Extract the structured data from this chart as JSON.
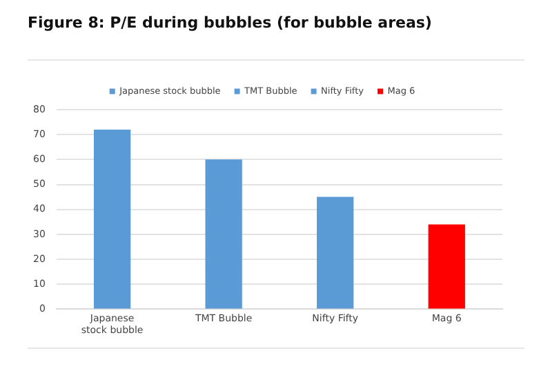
{
  "chart_data": {
    "type": "bar",
    "title": "Figure 8: P/E during bubbles (for bubble areas)",
    "categories": [
      "Japanese stock bubble",
      "TMT Bubble",
      "Nifty Fifty",
      "Mag 6"
    ],
    "series": [
      {
        "name": "Japanese stock bubble",
        "color": "#5b9bd5",
        "values": [
          72,
          null,
          null,
          null
        ]
      },
      {
        "name": "TMT Bubble",
        "color": "#5b9bd5",
        "values": [
          null,
          60,
          null,
          null
        ]
      },
      {
        "name": "Nifty Fifty",
        "color": "#5b9bd5",
        "values": [
          null,
          null,
          45,
          null
        ]
      },
      {
        "name": "Mag 6",
        "color": "#ff0000",
        "values": [
          null,
          null,
          null,
          34
        ]
      }
    ],
    "ylim": [
      0,
      80
    ],
    "yticks": [
      0,
      10,
      20,
      30,
      40,
      50,
      60,
      70,
      80
    ],
    "grid": "y",
    "legend": "top"
  }
}
